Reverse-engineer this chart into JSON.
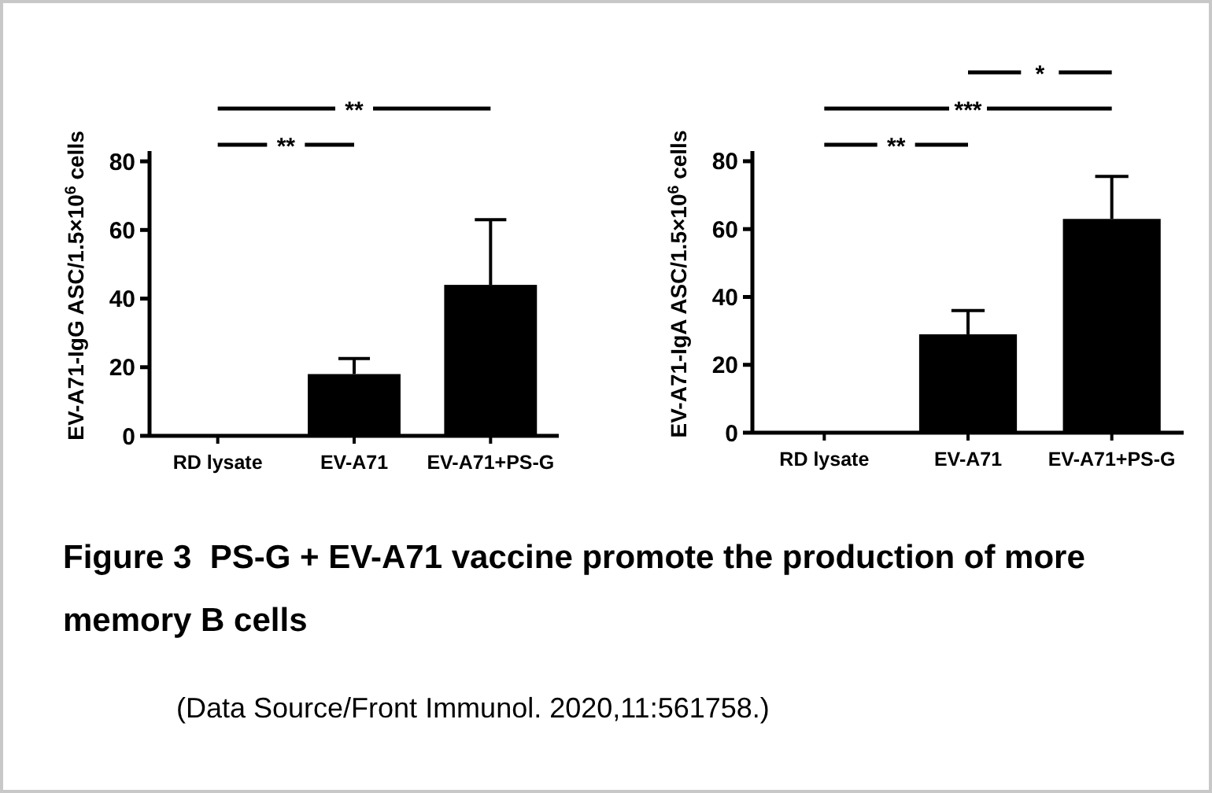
{
  "chart_data": [
    {
      "type": "bar",
      "ylabel": "EV-A71-IgG ASC/1.5×10$^{6}$ cells",
      "categories": [
        "RD lysate",
        "EV-A71",
        "EV-A71+PS-G"
      ],
      "values": [
        0.3,
        18,
        44
      ],
      "errors": [
        null,
        [
          18,
          22.5
        ],
        [
          44,
          63
        ]
      ],
      "color": "#000000",
      "ylim": [
        0,
        83
      ],
      "yticks": [
        0,
        20,
        40,
        60,
        80
      ],
      "annotations": [
        "**",
        "**"
      ]
    },
    {
      "type": "bar",
      "ylabel": "EV-A71-IgA ASC/1.5×10$^{6}$ cells",
      "categories": [
        "RD lysate",
        "EV-A71",
        "EV-A71+PS-G"
      ],
      "values": [
        0.3,
        29,
        63
      ],
      "errors": [
        null,
        [
          29,
          36
        ],
        [
          63,
          75.5
        ]
      ],
      "color": "#000000",
      "ylim": [
        0,
        83
      ],
      "yticks": [
        0,
        20,
        40,
        60,
        80
      ],
      "annotations": [
        "**",
        "***",
        "*"
      ]
    },
    {
      "type": "other",
      "title": "Figure 3  PS-G + EV-A71 vaccine promote the production of more memory B cells",
      "annotations": [
        "(Data Source/Front Immunol. 2020,11:561758.)"
      ]
    }
  ]
}
